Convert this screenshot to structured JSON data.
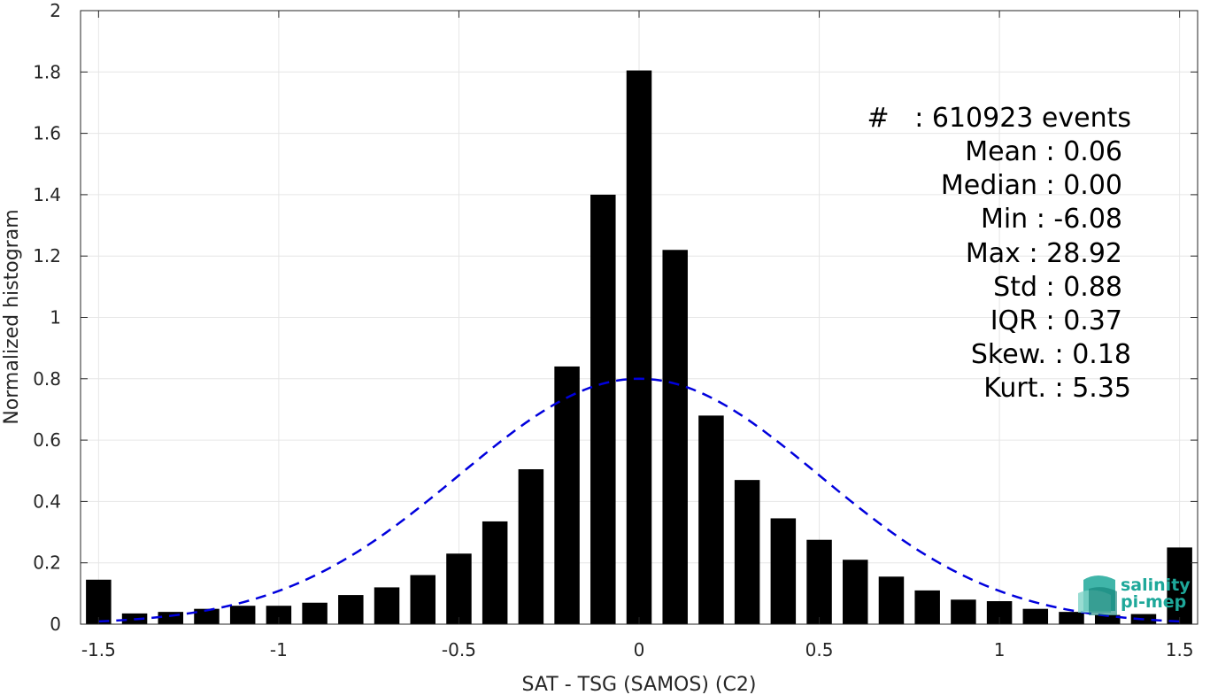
{
  "chart_data": {
    "type": "bar",
    "title": "",
    "xlabel": "SAT - TSG (SAMOS) (C2)",
    "ylabel": "Normalized histogram",
    "xlim": [
      -1.55,
      1.55
    ],
    "ylim": [
      0,
      2
    ],
    "xticks": [
      -1.5,
      -1,
      -0.5,
      0,
      0.5,
      1,
      1.5
    ],
    "xtick_labels": [
      "-1.5",
      "-1",
      "-0.5",
      "0",
      "0.5",
      "1",
      "1.5"
    ],
    "yticks": [
      0,
      0.2,
      0.4,
      0.6,
      0.8,
      1,
      1.2,
      1.4,
      1.6,
      1.8,
      2
    ],
    "ytick_labels": [
      "0",
      "0.2",
      "0.4",
      "0.6",
      "0.8",
      "1",
      "1.2",
      "1.4",
      "1.6",
      "1.8",
      "2"
    ],
    "grid": true,
    "bar_color": "#000000",
    "bins_x": [
      -1.5,
      -1.4,
      -1.3,
      -1.2,
      -1.1,
      -1.0,
      -0.9,
      -0.8,
      -0.7,
      -0.6,
      -0.5,
      -0.4,
      -0.3,
      -0.2,
      -0.1,
      0.0,
      0.1,
      0.2,
      0.3,
      0.4,
      0.5,
      0.6,
      0.7,
      0.8,
      0.9,
      1.0,
      1.1,
      1.2,
      1.3,
      1.4,
      1.5
    ],
    "values": [
      0.145,
      0.035,
      0.04,
      0.05,
      0.06,
      0.06,
      0.07,
      0.095,
      0.12,
      0.16,
      0.23,
      0.335,
      0.505,
      0.84,
      1.4,
      1.805,
      1.22,
      0.68,
      0.47,
      0.345,
      0.275,
      0.21,
      0.155,
      0.11,
      0.08,
      0.075,
      0.05,
      0.04,
      0.03,
      0.033,
      0.25
    ],
    "fit_curve": {
      "type": "gaussian",
      "mean": 0.0,
      "std": 0.5,
      "peak": 0.8,
      "color": "#0000dd",
      "style": "dashed",
      "x_range": [
        -1.5,
        1.5
      ]
    },
    "stats": [
      "#   : 610923 events",
      "Mean : 0.06",
      "Median : 0.00",
      "Min : -6.08",
      "Max : 28.92",
      "Std : 0.88",
      "IQR : 0.37",
      "Skew. : 0.18",
      "Kurt. : 5.35"
    ]
  },
  "logo": {
    "line1": "salinity",
    "line2": "pi-mep",
    "color": "#1ea89a"
  }
}
